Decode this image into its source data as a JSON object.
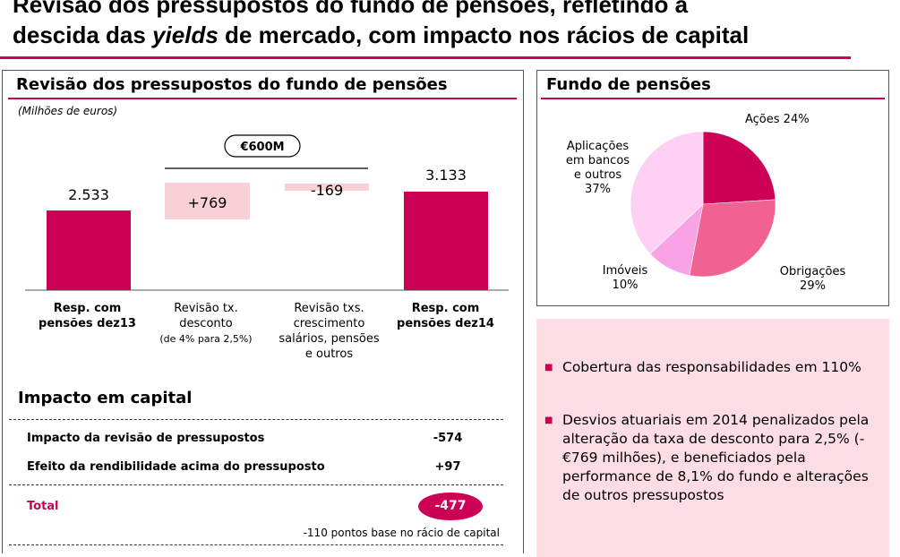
{
  "slide": {
    "title_line1": "Revisão dos pressupostos do fundo de pensões, refletindo a",
    "title_line2_pre": "descida das ",
    "title_line2_em": "yields",
    "title_line2_post": " de mercado, com impacto nos rácios de capital"
  },
  "revision": {
    "title": "Revisão dos pressupostos do fundo de pensões",
    "unit": "(Milhões de euros)",
    "bracket_label": "€600M",
    "labels": [
      {
        "line1": "Resp. com",
        "line2": "pensões dez13"
      },
      {
        "line1": "Revisão tx.",
        "line2": "desconto",
        "line3": "(de 4% para 2,5%)"
      },
      {
        "line1": "Revisão txs.",
        "line2": "crescimento",
        "line3": "salários, pensões",
        "line4": "e outros"
      },
      {
        "line1": "Resp. com",
        "line2": "pensões dez14"
      }
    ]
  },
  "chart_data": [
    {
      "type": "bar",
      "subtype": "waterfall",
      "title": "Revisão dos pressupostos do fundo de pensões",
      "unit": "Milhões de euros",
      "categories": [
        "Resp. com pensões dez13",
        "Revisão tx. desconto (de 4% para 2,5%)",
        "Revisão txs. crescimento salários, pensões e outros",
        "Resp. com pensões dez14"
      ],
      "values": [
        2533,
        769,
        -169,
        3133
      ],
      "value_labels": [
        "2.533",
        "+769",
        "-169",
        "3.133"
      ],
      "bar_kind": [
        "total",
        "delta",
        "delta",
        "total"
      ],
      "bracket": "€600M",
      "colors": {
        "total": "#cc0055",
        "delta": "#f8d0d8"
      }
    },
    {
      "type": "pie",
      "title": "Fundo de pensões",
      "labels": [
        "Ações",
        "Obrigações",
        "Imóveis",
        "Aplicações em bancos e outros"
      ],
      "values": [
        24,
        29,
        10,
        37
      ],
      "value_labels": [
        "24%",
        "29%",
        "10%",
        "37%"
      ],
      "colors": [
        "#cc0055",
        "#f06292",
        "#f8a3e6",
        "#fdd0f4"
      ]
    }
  ],
  "capital": {
    "title": "Impacto em capital",
    "rows": [
      {
        "label": "Impacto da revisão de pressupostos",
        "value": "-574"
      },
      {
        "label": "Efeito da rendibilidade acima do pressuposto",
        "value": "+97"
      }
    ],
    "total_label": "Total",
    "total_value": "-477",
    "note": "-110 pontos base no rácio de capital"
  },
  "pension_fund": {
    "title": "Fundo de pensões",
    "labels": {
      "acoes": "Ações 24%",
      "aplic_line1": "Aplicações",
      "aplic_line2": "em bancos",
      "aplic_line3": "e outros",
      "aplic_line4": "37%",
      "imoveis_line1": "Imóveis",
      "imoveis_line2": "10%",
      "obrig_line1": "Obrigações",
      "obrig_line2": "29%"
    }
  },
  "highlights": [
    "Cobertura das responsabilidades em 110%",
    "Desvios atuariais em 2014 penalizados pela alteração da taxa de desconto para 2,5% (-€769 milhões), e beneficiados pela performance de 8,1% do fundo e alterações de outros pressupostos"
  ],
  "colors": {
    "accent": "#cc0055",
    "light": "#f8d0d8",
    "panel": "#fcdde3"
  }
}
